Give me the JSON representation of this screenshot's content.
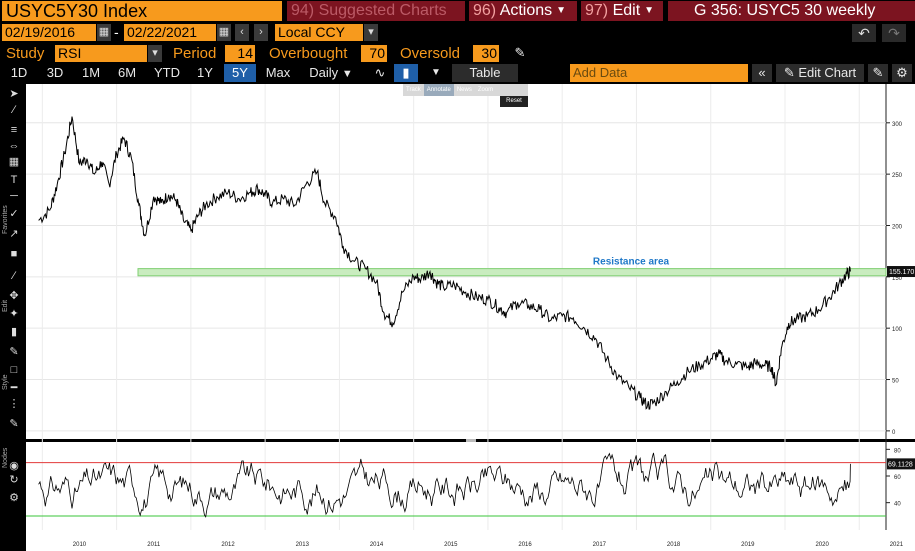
{
  "header": {
    "ticker": "USYC5Y30 Index",
    "suggested": {
      "num": "94)",
      "label": "Suggested Charts"
    },
    "actions": {
      "num": "96)",
      "label": "Actions"
    },
    "edit": {
      "num": "97)",
      "label": "Edit"
    },
    "chart_title": "G 356: USYC5 30 weekly"
  },
  "dates": {
    "start": "02/19/2016",
    "end": "02/22/2021",
    "separator": "-",
    "currency": "Local CCY"
  },
  "study": {
    "label": "Study",
    "value": "RSI",
    "period_label": "Period",
    "period": "14",
    "overbought_label": "Overbought",
    "overbought": "70",
    "oversold_label": "Oversold",
    "oversold": "30"
  },
  "toolbar": {
    "ranges": [
      "1D",
      "3D",
      "1M",
      "6M",
      "YTD",
      "1Y",
      "5Y",
      "Max"
    ],
    "active_range": "5Y",
    "frequency": "Daily",
    "table": "Table",
    "add_data_placeholder": "Add Data",
    "edit_chart": "Edit Chart"
  },
  "mini_toolbar": {
    "items": [
      "Track",
      "Annotate",
      "News",
      "Zoom"
    ],
    "reset": "Reset"
  },
  "sidebar": {
    "favorites": "Favorites",
    "edit": "Edit",
    "style": "Style",
    "nodes": "Nodes"
  },
  "chart_data": [
    {
      "type": "line",
      "title": "",
      "x_labels": [
        "2010",
        "2011",
        "2012",
        "2013",
        "2014",
        "2015",
        "2016",
        "2017",
        "2018",
        "2019",
        "2020",
        "2021"
      ],
      "y_ticks": [
        0,
        50,
        100,
        150,
        200,
        250,
        300
      ],
      "ylim": [
        -5,
        330
      ],
      "last_value_label": "155.170",
      "annotation": {
        "text": "Resistance area",
        "band": [
          151,
          158
        ]
      },
      "series": [
        {
          "points": [
            [
              2009.95,
              205
            ],
            [
              2010.1,
              215
            ],
            [
              2010.2,
              240
            ],
            [
              2010.3,
              270
            ],
            [
              2010.4,
              306
            ],
            [
              2010.5,
              260
            ],
            [
              2010.6,
              265
            ],
            [
              2010.7,
              250
            ],
            [
              2010.8,
              262
            ],
            [
              2010.9,
              240
            ],
            [
              2011.0,
              270
            ],
            [
              2011.1,
              285
            ],
            [
              2011.2,
              265
            ],
            [
              2011.3,
              220
            ],
            [
              2011.38,
              190
            ],
            [
              2011.5,
              228
            ],
            [
              2011.6,
              222
            ],
            [
              2011.7,
              230
            ],
            [
              2011.8,
              225
            ],
            [
              2011.9,
              205
            ],
            [
              2012.0,
              195
            ],
            [
              2012.1,
              210
            ],
            [
              2012.2,
              220
            ],
            [
              2012.35,
              228
            ],
            [
              2012.5,
              232
            ],
            [
              2012.65,
              226
            ],
            [
              2012.8,
              232
            ],
            [
              2012.9,
              236
            ],
            [
              2013.0,
              230
            ],
            [
              2013.1,
              222
            ],
            [
              2013.25,
              226
            ],
            [
              2013.4,
              220
            ],
            [
              2013.55,
              240
            ],
            [
              2013.7,
              252
            ],
            [
              2013.8,
              222
            ],
            [
              2013.95,
              208
            ],
            [
              2014.05,
              180
            ],
            [
              2014.2,
              165
            ],
            [
              2014.35,
              158
            ],
            [
              2014.5,
              145
            ],
            [
              2014.6,
              115
            ],
            [
              2014.72,
              105
            ],
            [
              2014.85,
              135
            ],
            [
              2015.0,
              150
            ],
            [
              2015.1,
              148
            ],
            [
              2015.22,
              155
            ],
            [
              2015.3,
              145
            ],
            [
              2015.4,
              140
            ],
            [
              2015.55,
              142
            ],
            [
              2015.7,
              135
            ],
            [
              2015.85,
              130
            ],
            [
              2016.0,
              128
            ],
            [
              2016.15,
              120
            ],
            [
              2016.25,
              115
            ],
            [
              2016.4,
              125
            ],
            [
              2016.55,
              122
            ],
            [
              2016.7,
              118
            ],
            [
              2016.85,
              108
            ],
            [
              2017.0,
              112
            ],
            [
              2017.15,
              110
            ],
            [
              2017.3,
              100
            ],
            [
              2017.45,
              90
            ],
            [
              2017.6,
              70
            ],
            [
              2017.75,
              52
            ],
            [
              2017.9,
              42
            ],
            [
              2018.05,
              32
            ],
            [
              2018.15,
              25
            ],
            [
              2018.25,
              28
            ],
            [
              2018.4,
              38
            ],
            [
              2018.55,
              48
            ],
            [
              2018.7,
              58
            ],
            [
              2018.85,
              64
            ],
            [
              2019.0,
              70
            ],
            [
              2019.1,
              75
            ],
            [
              2019.2,
              68
            ],
            [
              2019.35,
              65
            ],
            [
              2019.5,
              62
            ],
            [
              2019.6,
              66
            ],
            [
              2019.72,
              64
            ],
            [
              2019.82,
              62
            ],
            [
              2019.88,
              45
            ],
            [
              2019.95,
              80
            ],
            [
              2020.05,
              105
            ],
            [
              2020.15,
              108
            ],
            [
              2020.3,
              112
            ],
            [
              2020.45,
              118
            ],
            [
              2020.6,
              130
            ],
            [
              2020.72,
              142
            ],
            [
              2020.82,
              152
            ],
            [
              2020.88,
              155.17
            ]
          ]
        }
      ]
    },
    {
      "type": "line",
      "title": "",
      "y_ticks": [
        40,
        60,
        80
      ],
      "ylim": [
        21,
        84
      ],
      "overbought": 70,
      "oversold": 30,
      "last_value_label": "69.1128"
    }
  ]
}
